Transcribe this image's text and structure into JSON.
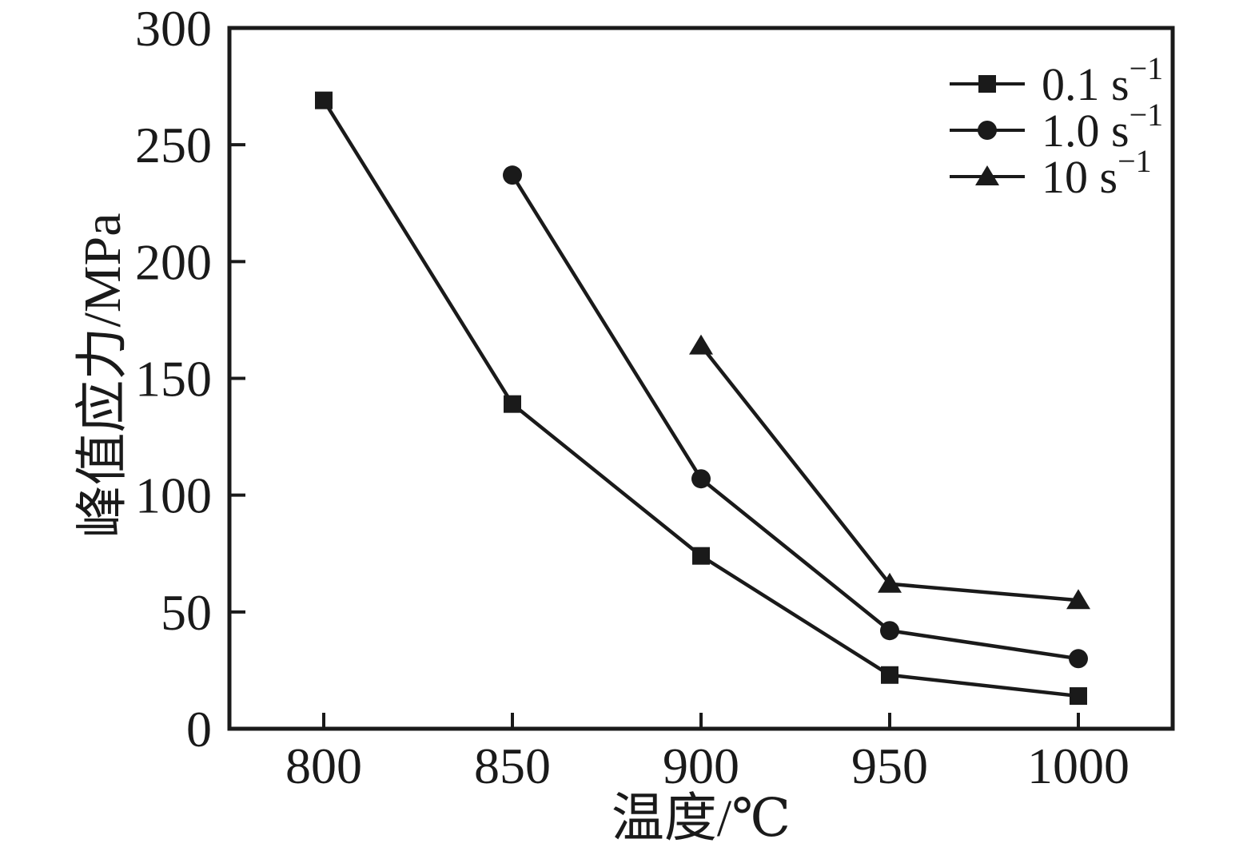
{
  "figure": {
    "background": "#ffffff",
    "ink_color": "#1a1a1a"
  },
  "chart_data": {
    "type": "line",
    "title": "",
    "xlabel": "温度/℃",
    "ylabel": "峰值应力/MPa",
    "xlim": [
      775,
      1025
    ],
    "ylim": [
      0,
      300
    ],
    "x_ticks": [
      800,
      850,
      900,
      950,
      1000
    ],
    "y_ticks": [
      0,
      50,
      100,
      150,
      200,
      250,
      300
    ],
    "grid": false,
    "legend_position": "top-right",
    "series": [
      {
        "name": "0.1 s⁻¹",
        "marker": "square",
        "x": [
          800,
          850,
          900,
          950,
          1000
        ],
        "y": [
          269,
          139,
          74,
          23,
          14
        ]
      },
      {
        "name": "1.0 s⁻¹",
        "marker": "circle",
        "x": [
          850,
          900,
          950,
          1000
        ],
        "y": [
          237,
          107,
          42,
          30
        ]
      },
      {
        "name": "10 s⁻¹",
        "marker": "triangle",
        "x": [
          900,
          950,
          1000
        ],
        "y": [
          164,
          62,
          55
        ]
      }
    ]
  }
}
